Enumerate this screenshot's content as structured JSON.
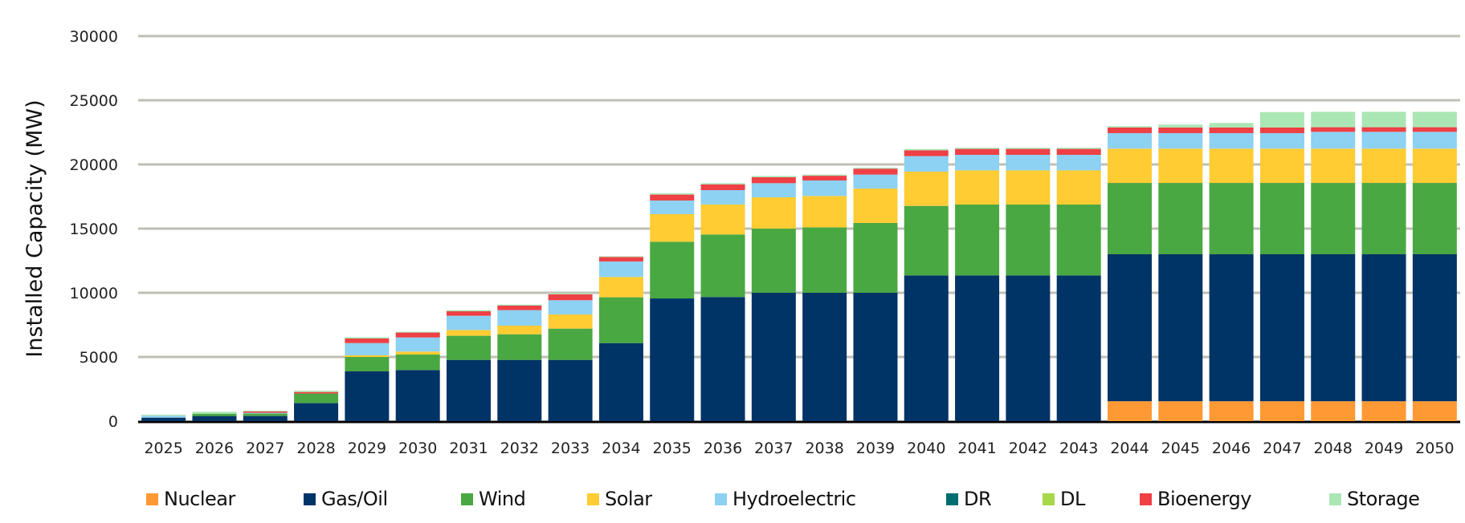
{
  "chart_data": {
    "type": "bar",
    "stacked": true,
    "title": "",
    "xlabel": "",
    "ylabel": "Installed Capacity (MW)",
    "ylim": [
      0,
      30000
    ],
    "yticks": [
      0,
      5000,
      10000,
      15000,
      20000,
      25000,
      30000
    ],
    "grid": true,
    "legend_position": "bottom",
    "categories": [
      "2025",
      "2026",
      "2027",
      "2028",
      "2029",
      "2030",
      "2031",
      "2032",
      "2033",
      "2034",
      "2035",
      "2036",
      "2037",
      "2038",
      "2039",
      "2040",
      "2041",
      "2042",
      "2043",
      "2044",
      "2045",
      "2046",
      "2047",
      "2048",
      "2049",
      "2050"
    ],
    "series": [
      {
        "name": "Nuclear",
        "color": "#FF9933",
        "values": [
          0,
          0,
          0,
          0,
          0,
          0,
          0,
          0,
          0,
          0,
          0,
          0,
          0,
          0,
          0,
          0,
          0,
          0,
          0,
          1550,
          1550,
          1550,
          1550,
          1550,
          1550,
          1550
        ]
      },
      {
        "name": "Gas/Oil",
        "color": "#003366",
        "values": [
          270,
          400,
          400,
          1400,
          3875,
          3980,
          4770,
          4770,
          4770,
          6080,
          9560,
          9670,
          10000,
          10000,
          10000,
          11350,
          11350,
          11350,
          11350,
          11450,
          11450,
          11450,
          11450,
          11450,
          11450,
          11450
        ]
      },
      {
        "name": "Wind",
        "color": "#4AA842",
        "values": [
          0,
          180,
          190,
          750,
          1125,
          1210,
          1880,
          2000,
          2440,
          3570,
          4420,
          4870,
          5000,
          5100,
          5440,
          5420,
          5525,
          5525,
          5525,
          5560,
          5560,
          5560,
          5560,
          5560,
          5560,
          5560
        ]
      },
      {
        "name": "Solar",
        "color": "#FFCC33",
        "values": [
          0,
          0,
          0,
          0,
          125,
          230,
          450,
          670,
          1100,
          1580,
          2145,
          2340,
          2440,
          2440,
          2680,
          2670,
          2665,
          2665,
          2665,
          2670,
          2670,
          2670,
          2670,
          2670,
          2670,
          2670
        ]
      },
      {
        "name": "Hydroelectric",
        "color": "#8DD1F3",
        "values": [
          150,
          0,
          60,
          0,
          955,
          1100,
          1110,
          1210,
          1110,
          1210,
          1065,
          1120,
          1100,
          1210,
          1090,
          1210,
          1210,
          1210,
          1210,
          1210,
          1210,
          1210,
          1210,
          1310,
          1310,
          1310
        ]
      },
      {
        "name": "DR",
        "color": "#006D6F",
        "values": [
          0,
          0,
          0,
          0,
          0,
          0,
          0,
          0,
          0,
          0,
          0,
          0,
          0,
          0,
          0,
          0,
          0,
          0,
          0,
          0,
          0,
          0,
          0,
          0,
          0,
          0
        ]
      },
      {
        "name": "DL",
        "color": "#A6D84A",
        "values": [
          0,
          0,
          0,
          0,
          0,
          0,
          0,
          0,
          0,
          0,
          0,
          0,
          0,
          0,
          0,
          0,
          0,
          0,
          0,
          0,
          0,
          0,
          0,
          0,
          0,
          0
        ]
      },
      {
        "name": "Bioenergy",
        "color": "#EE4045",
        "values": [
          0,
          0,
          100,
          120,
          360,
          380,
          350,
          350,
          460,
          350,
          460,
          440,
          460,
          370,
          460,
          450,
          460,
          460,
          460,
          440,
          440,
          440,
          440,
          360,
          360,
          360
        ]
      },
      {
        "name": "Storage",
        "color": "#ABE6B5",
        "values": [
          80,
          150,
          60,
          100,
          100,
          60,
          90,
          80,
          80,
          60,
          100,
          100,
          100,
          90,
          80,
          100,
          100,
          100,
          100,
          100,
          230,
          350,
          1200,
          1200,
          1200,
          1200
        ]
      }
    ]
  }
}
